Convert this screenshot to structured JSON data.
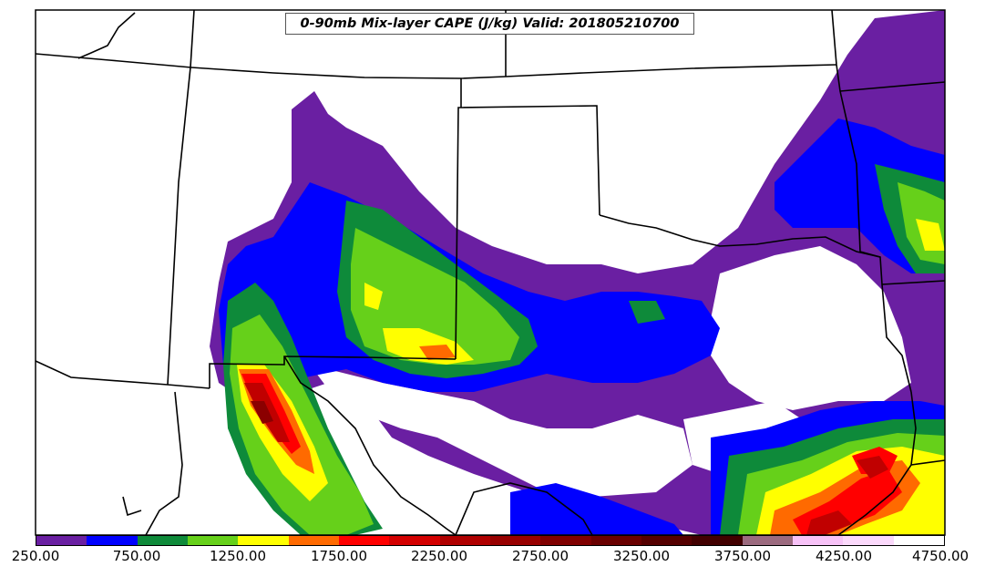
{
  "title": "0-90mb Mix-layer CAPE (J/kg) Valid: 201805210700",
  "colors": {
    "c250": "#6a1fa2",
    "c500": "#0000ff",
    "c750": "#0e8a3a",
    "c1000": "#66d01a",
    "c1250": "#ffff00",
    "c1500": "#ff6a00",
    "c1750": "#ff0000",
    "c2000": "#d40000",
    "c2250": "#b00000",
    "c2500": "#980000",
    "c2750": "#800000",
    "c3000": "#6a0000",
    "c3250": "#550000",
    "c3500": "#420000",
    "c3750": "#9c6b7f",
    "c4000": "#f7c2f7",
    "c4250": "#fbd9fb",
    "c4500": "#ffffff"
  },
  "colorbar": {
    "segments": [
      "#6a1fa2",
      "#0000ff",
      "#0e8a3a",
      "#66d01a",
      "#ffff00",
      "#ff6a00",
      "#ff0000",
      "#d40000",
      "#b00000",
      "#980000",
      "#800000",
      "#6a0000",
      "#550000",
      "#420000",
      "#9c6b7f",
      "#f7c2f7",
      "#fbd9fb",
      "#ffffff"
    ],
    "tick_labels": [
      "250.00",
      "750.00",
      "1250.00",
      "1750.00",
      "2250.00",
      "2750.00",
      "3250.00",
      "3750.00",
      "4250.00",
      "4750.00"
    ]
  }
}
